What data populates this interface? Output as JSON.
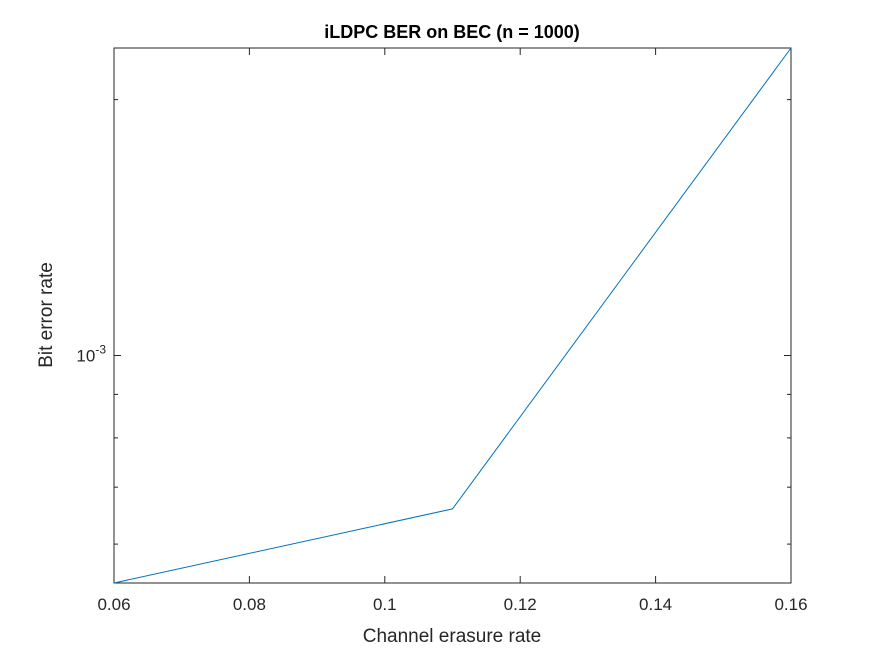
{
  "chart_data": {
    "type": "line",
    "title": "iLDPC BER on BEC (n = 1000)",
    "xlabel": "Channel erasure rate",
    "ylabel": "Bit error rate",
    "xlim": [
      0.06,
      0.16
    ],
    "ylim": [
      0.00054,
      0.0023
    ],
    "yscale": "log",
    "grid": false,
    "x_ticks": [
      0.06,
      0.08,
      0.1,
      0.12,
      0.14,
      0.16
    ],
    "x_tick_labels": [
      "0.06",
      "0.08",
      "0.1",
      "0.12",
      "0.14",
      "0.16"
    ],
    "y_major_ticks": [
      0.001
    ],
    "y_major_tick_labels": [
      {
        "base": "10",
        "exponent": "-3"
      }
    ],
    "y_minor_ticks": [
      0.0006,
      0.0007,
      0.0008,
      0.0009,
      0.002
    ],
    "series": [
      {
        "color": "#0072bd",
        "x": [
          0.06,
          0.11,
          0.16
        ],
        "y": [
          0.00054,
          0.00066,
          0.0023
        ]
      }
    ]
  }
}
